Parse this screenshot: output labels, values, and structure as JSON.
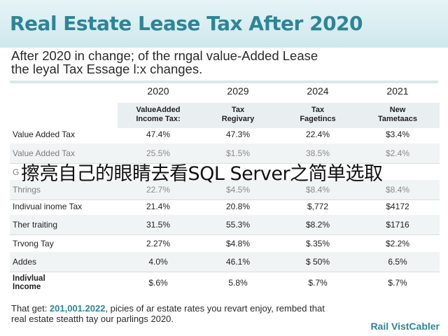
{
  "title": "Real Estate Lease Tax After 2020",
  "intro": {
    "line1": "After 2020 in change; of the rngal value-Added Lease",
    "line2": "the leyal Tax Essage l:x changes."
  },
  "years": [
    "2020",
    "2029",
    "2024",
    "2021"
  ],
  "subheaders": [
    [
      "ValueAdded",
      "Income Tax:"
    ],
    [
      "Tax",
      "Regivary"
    ],
    [
      "Tax",
      "Fagetincs"
    ],
    [
      "New",
      "Tametaacs"
    ]
  ],
  "rows": [
    {
      "label": "Value Added Tax",
      "values": [
        "47.4%",
        "47.3%",
        "22.4%",
        "$3.4%"
      ]
    },
    {
      "label": "Value Added Tax",
      "values": [
        "25.5%",
        "$1.5%",
        "38.5%",
        "$2.4%"
      ]
    },
    {
      "label": "G",
      "values": [
        "",
        "",
        "",
        ""
      ]
    },
    {
      "label": "Thrings",
      "values": [
        "22.7%",
        "$4.5%",
        "$8.4%",
        "$8.4%"
      ]
    },
    {
      "label": "Indivual inome Tax",
      "values": [
        "21.4%",
        "20.8%",
        "$,772",
        "$4172"
      ]
    },
    {
      "label": "Ther traiting",
      "values": [
        "31.5%",
        "55.3%",
        "$8.2%",
        "$1716"
      ]
    },
    {
      "label": "Trvong Tay",
      "values": [
        "2.27%",
        "$4.8%",
        "$.35%",
        "$2.2%"
      ]
    },
    {
      "label": "Addes",
      "values": [
        "4.0%",
        "46.1%",
        "$ 50%",
        "6.5%"
      ]
    },
    {
      "label_line1": "Indivlual",
      "label_line2": "Income",
      "values": [
        "$.6%",
        "5.8%",
        "$.7%",
        "$.7%"
      ]
    }
  ],
  "watermark": "擦亮自己的眼睛去看SQL Server之简单选取",
  "footer": {
    "prefix": "That get: ",
    "highlight": "201,001.2022",
    "line1_rest": ", picies of ar estate rates you revart enjoy, rembed that",
    "line2": "real estate steatth tay our parlings 2020."
  },
  "brand": "Rail VistCabler",
  "colors": {
    "accent": "#2d8597",
    "header_bg": "#cfe8ec"
  }
}
